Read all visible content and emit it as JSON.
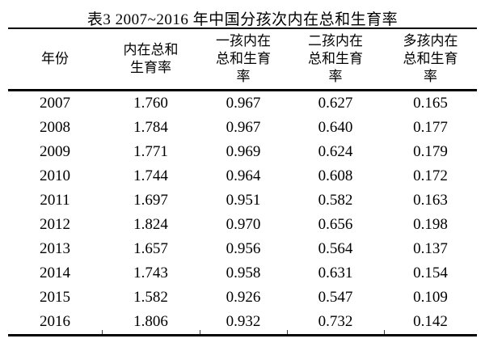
{
  "title": "表3 2007~2016 年中国分孩次内在总和生育率",
  "colors": {
    "text": "#000000",
    "rule": "#000000",
    "background": "#ffffff"
  },
  "table": {
    "headers": [
      "年份",
      "内在总和\n生育率",
      "一孩内在\n总和生育\n率",
      "二孩内在\n总和生育\n率",
      "多孩内在\n总和生育\n率"
    ],
    "rows": [
      [
        "2007",
        "1.760",
        "0.967",
        "0.627",
        "0.165"
      ],
      [
        "2008",
        "1.784",
        "0.967",
        "0.640",
        "0.177"
      ],
      [
        "2009",
        "1.771",
        "0.969",
        "0.624",
        "0.179"
      ],
      [
        "2010",
        "1.744",
        "0.964",
        "0.608",
        "0.172"
      ],
      [
        "2011",
        "1.697",
        "0.951",
        "0.582",
        "0.163"
      ],
      [
        "2012",
        "1.824",
        "0.970",
        "0.656",
        "0.198"
      ],
      [
        "2013",
        "1.657",
        "0.956",
        "0.564",
        "0.137"
      ],
      [
        "2014",
        "1.743",
        "0.958",
        "0.631",
        "0.154"
      ],
      [
        "2015",
        "1.582",
        "0.926",
        "0.547",
        "0.109"
      ],
      [
        "2016",
        "1.806",
        "0.932",
        "0.732",
        "0.142"
      ]
    ]
  }
}
